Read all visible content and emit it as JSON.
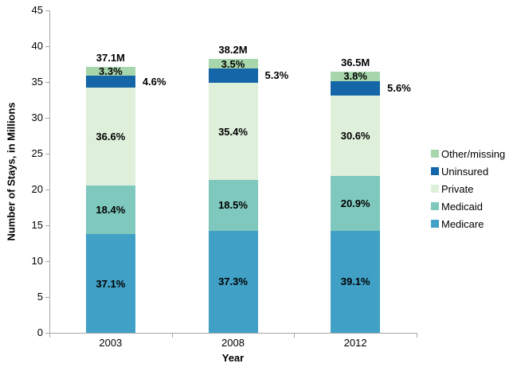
{
  "chart_data": {
    "type": "bar",
    "variant": "stacked-column",
    "title": "",
    "xlabel": "Year",
    "ylabel": "Number of Stays, in Millions",
    "ylim": [
      0,
      45
    ],
    "ytick_step": 5,
    "grid": false,
    "legend_position": "right",
    "categories": [
      "2003",
      "2008",
      "2012"
    ],
    "bar_total_labels": [
      "37.1M",
      "38.2M",
      "36.5M"
    ],
    "bar_totals_millions": [
      37.1,
      38.2,
      36.5
    ],
    "series": [
      {
        "name": "Medicare",
        "color": "#41A0C6",
        "percents": [
          37.1,
          37.3,
          39.1
        ],
        "label_placement": "inside"
      },
      {
        "name": "Medicaid",
        "color": "#7EC8BE",
        "percents": [
          18.4,
          18.5,
          20.9
        ],
        "label_placement": "inside"
      },
      {
        "name": "Private",
        "color": "#DEEFDA",
        "percents": [
          36.6,
          35.4,
          30.6
        ],
        "label_placement": "inside"
      },
      {
        "name": "Uninsured",
        "color": "#1566A9",
        "percents": [
          4.6,
          5.3,
          5.6
        ],
        "label_placement": "outside-right"
      },
      {
        "name": "Other/missing",
        "color": "#A8D6AC",
        "percents": [
          3.3,
          3.5,
          3.8
        ],
        "label_placement": "inside"
      }
    ],
    "legend_items": [
      "Other/missing",
      "Uninsured",
      "Private",
      "Medicaid",
      "Medicare"
    ],
    "axis_color": "#A6A6A6",
    "text_color": "#000000"
  }
}
